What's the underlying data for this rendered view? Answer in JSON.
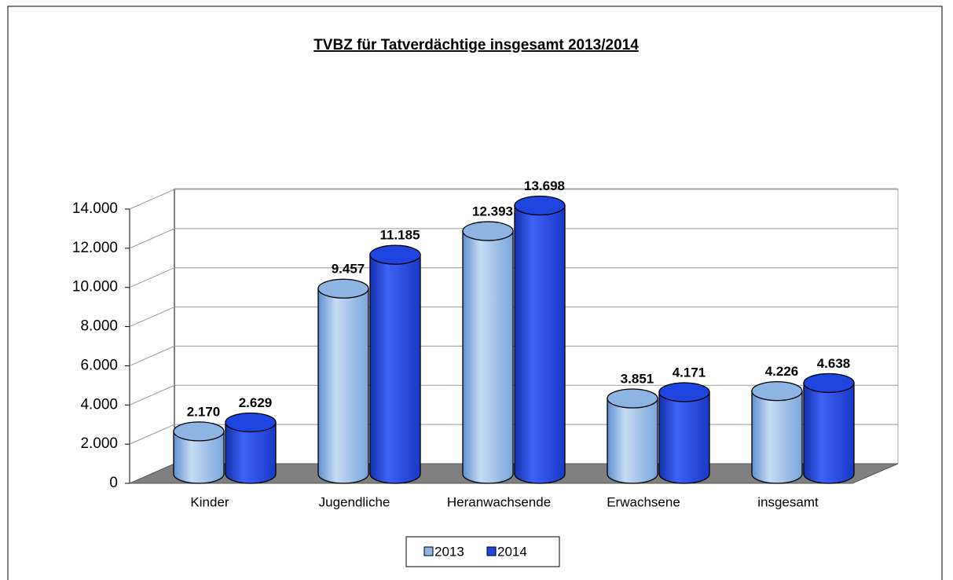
{
  "chart_data": {
    "type": "bar3d",
    "title": "TVBZ für Tatverdächtige insgesamt 2013/2014",
    "categories": [
      "Kinder",
      "Jugendliche",
      "Heranwachsende",
      "Erwachsene",
      "insgesamt"
    ],
    "series": [
      {
        "name": "2013",
        "color": "#8db4e2",
        "values": [
          2170,
          9457,
          12393,
          3851,
          4226
        ],
        "value_labels": [
          "2.170",
          "9.457",
          "12.393",
          "3.851",
          "4.226"
        ]
      },
      {
        "name": "2014",
        "color": "#1f45e0",
        "values": [
          2629,
          11185,
          13698,
          4171,
          4638
        ],
        "value_labels": [
          "2.629",
          "11.185",
          "13.698",
          "4.171",
          "4.638"
        ]
      }
    ],
    "ylim": [
      0,
      14000
    ],
    "yticks": [
      0,
      {
        "value": 2000,
        "label": "2.000"
      },
      {
        "value": 4000,
        "label": "4.000"
      },
      {
        "value": 6000,
        "label": "6.000"
      },
      {
        "value": 8000,
        "label": "8.000"
      },
      {
        "value": 10000,
        "label": "10.000"
      },
      {
        "value": 12000,
        "label": "12.000"
      },
      {
        "value": 14000,
        "label": "14.000"
      }
    ],
    "grid": true
  }
}
